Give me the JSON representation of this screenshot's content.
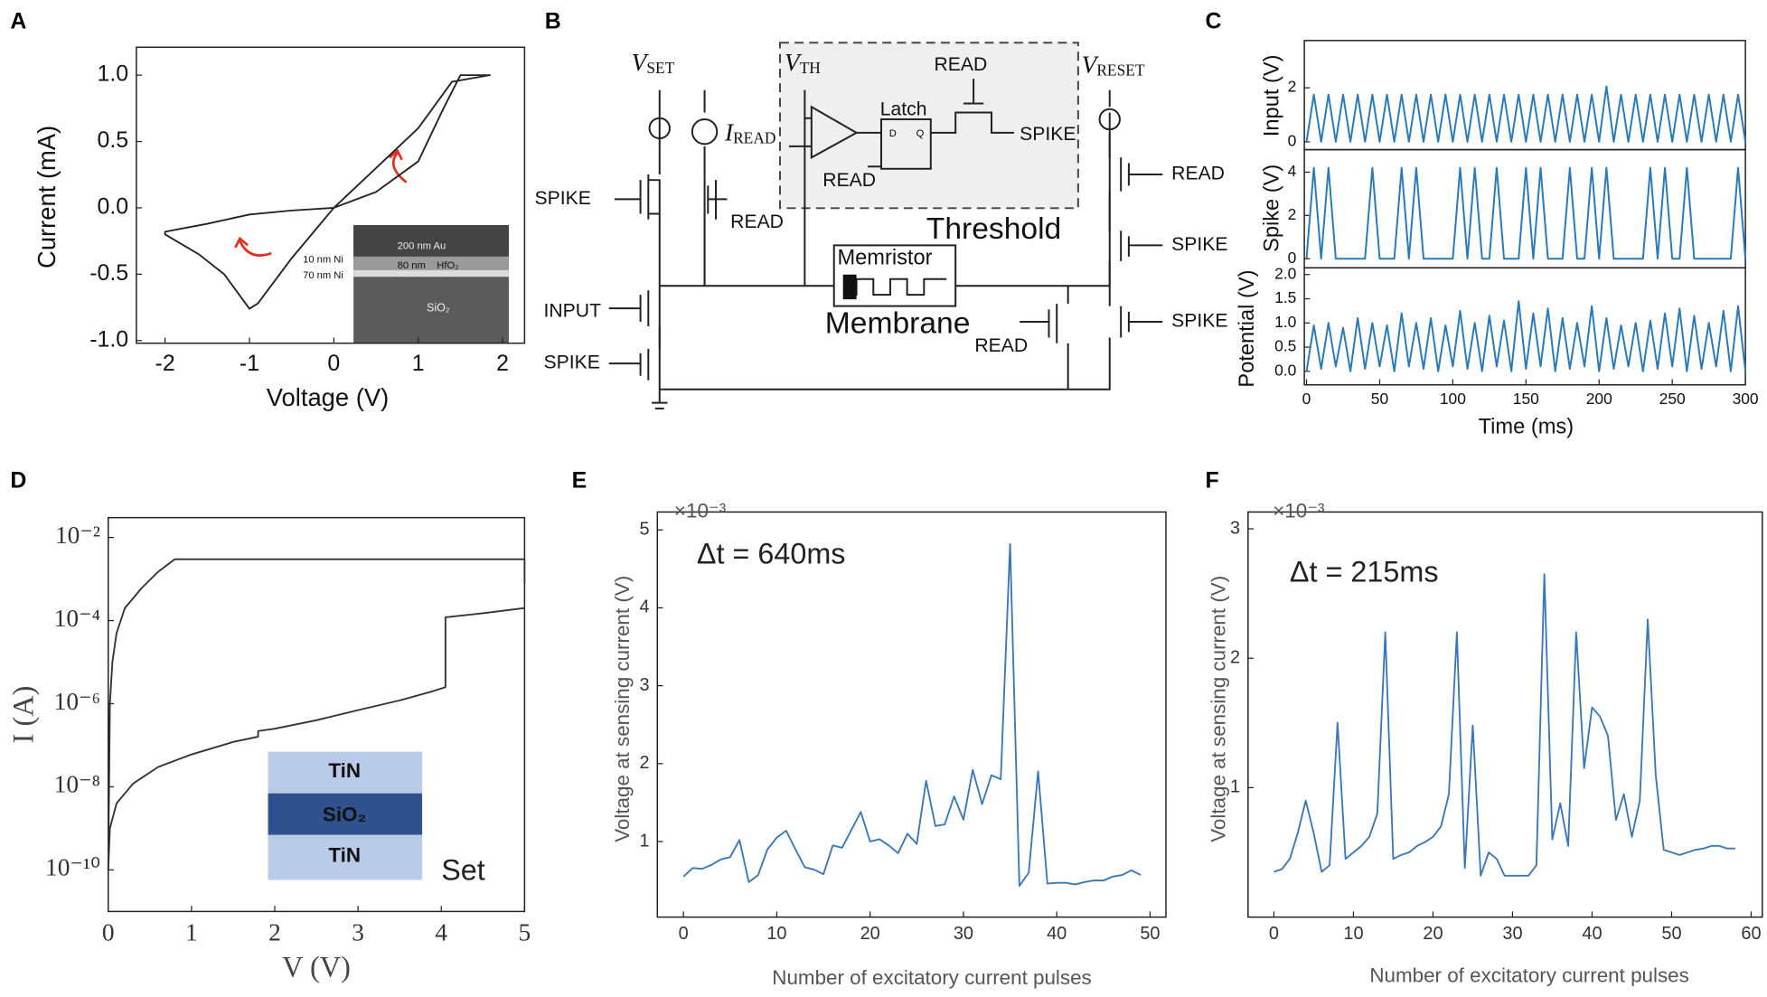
{
  "panel_labels": [
    "A",
    "B",
    "C",
    "D",
    "E",
    "F"
  ],
  "circuit": {
    "sources": [
      {
        "symbol": "V",
        "sub": "SET"
      },
      {
        "symbol": "I",
        "sub": "READ"
      },
      {
        "symbol": "V",
        "sub": "TH"
      },
      {
        "symbol": "V",
        "sub": "RESET"
      }
    ],
    "labels": [
      "SPIKE",
      "READ",
      "INPUT",
      "SPIKE",
      "Latch",
      "D",
      "Q",
      "READ",
      "READ",
      "SPIKE",
      "Threshold",
      "Memristor",
      "Membrane",
      "READ",
      "READ",
      "SPIKE",
      "SPIKE"
    ]
  },
  "chart_data": [
    {
      "type": "line",
      "xlabel": "Voltage (V)",
      "ylabel": "Current (mA)",
      "xlim": [
        -2.34,
        2.26
      ],
      "ylim": [
        -1.02,
        1.21
      ],
      "xticks": [
        -2,
        -1,
        0,
        1,
        2
      ],
      "yticks": [
        {
          "value": 1.0,
          "label": "1.0"
        },
        {
          "value": 0.5,
          "label": "0.5"
        },
        {
          "value": 0,
          "label": "0.0"
        },
        {
          "value": -0.5,
          "label": "-0.5"
        },
        {
          "value": -1.0,
          "label": "-1.0"
        }
      ],
      "series": [
        {
          "color": "#222222",
          "x": [
            0,
            0.5,
            1.0,
            1.3,
            1.5,
            1.85,
            1.4,
            1.0,
            0.5,
            0,
            -0.5,
            -0.9,
            -1.0,
            -1.3,
            -1.6,
            -2.0,
            -2.0,
            -1.5,
            -1.0,
            -0.5,
            0
          ],
          "values": [
            0,
            0.12,
            0.35,
            0.75,
            1.0,
            1.0,
            0.95,
            0.6,
            0.3,
            0,
            -0.38,
            -0.72,
            -0.76,
            -0.5,
            -0.35,
            -0.2,
            -0.18,
            -0.12,
            -0.05,
            -0.02,
            0
          ]
        }
      ],
      "inset_labels": [
        "200 nm Au",
        "80 nm",
        "HfO₂",
        "10 nm Ni",
        "70 nm Ni",
        "SiO₂"
      ]
    },
    {
      "type": "line",
      "ylabel": "Input (V)",
      "xlim": [
        -1.5,
        300
      ],
      "ylim": [
        -0.29,
        3.75
      ],
      "yticks": [
        0,
        2
      ],
      "series": [
        {
          "color": "#2a7ab9",
          "x": [
            0,
            5,
            10,
            15,
            20,
            25,
            30,
            35,
            40,
            45,
            50,
            55,
            60,
            65,
            70,
            75,
            80,
            85,
            90,
            95,
            100,
            105,
            110,
            115,
            120,
            125,
            130,
            135,
            140,
            145,
            150,
            155,
            160,
            165,
            170,
            175,
            180,
            185,
            190,
            195,
            200,
            205,
            210,
            215,
            220,
            225,
            230,
            235,
            240,
            245,
            250,
            255,
            260,
            265,
            270,
            275,
            280,
            285,
            290,
            295,
            300
          ],
          "values": [
            0,
            1.75,
            0,
            1.75,
            0,
            1.75,
            0,
            1.75,
            0,
            1.75,
            0,
            1.75,
            0,
            1.75,
            0,
            1.75,
            0,
            1.75,
            0,
            1.75,
            0,
            1.75,
            0,
            1.75,
            0,
            1.75,
            0,
            1.75,
            0,
            1.75,
            0,
            1.75,
            0,
            1.75,
            0,
            1.75,
            0,
            1.75,
            0,
            1.75,
            0,
            2.05,
            0,
            1.75,
            0,
            1.75,
            0,
            1.75,
            0,
            1.75,
            0,
            1.75,
            0,
            1.75,
            0,
            1.75,
            0,
            1.75,
            0,
            1.75,
            0
          ]
        }
      ]
    },
    {
      "type": "line",
      "ylabel": "Spike (V)",
      "xlim": [
        -1.5,
        300
      ],
      "ylim": [
        -0.42,
        5.04
      ],
      "yticks": [
        0,
        2,
        4
      ],
      "series": [
        {
          "color": "#2a7ab9",
          "x": [
            0,
            5,
            10,
            15,
            20,
            25,
            30,
            35,
            40,
            45,
            50,
            55,
            60,
            65,
            70,
            75,
            80,
            85,
            90,
            95,
            100,
            105,
            110,
            115,
            120,
            125,
            130,
            135,
            140,
            145,
            150,
            155,
            160,
            165,
            170,
            175,
            180,
            185,
            190,
            195,
            200,
            205,
            210,
            215,
            220,
            225,
            230,
            235,
            240,
            245,
            250,
            255,
            260,
            265,
            270,
            275,
            280,
            285,
            290,
            295,
            300
          ],
          "values": [
            0,
            4.2,
            0,
            4.2,
            0,
            0,
            0,
            0,
            0,
            4.2,
            0,
            0,
            0,
            4.2,
            0,
            4.2,
            0,
            0,
            0,
            0,
            0,
            4.2,
            0,
            4.2,
            0,
            0,
            4.2,
            0,
            0,
            0,
            4.2,
            0,
            4.2,
            0,
            0,
            0,
            4.2,
            0,
            0,
            4.2,
            0,
            4.2,
            0,
            0,
            0,
            0,
            0,
            4.2,
            0,
            4.2,
            0,
            0,
            4.2,
            0,
            0,
            0,
            0,
            0,
            0,
            4.2,
            0
          ]
        }
      ]
    },
    {
      "type": "line",
      "ylabel": "Potential (V)",
      "xlabel": "Time (ms)",
      "xlim": [
        -1.5,
        300
      ],
      "ylim": [
        -0.28,
        2.14
      ],
      "xticks": [
        0,
        50,
        100,
        150,
        200,
        250,
        300
      ],
      "yticks": [
        {
          "value": 0,
          "label": "0.0"
        },
        {
          "value": 0.5,
          "label": "0.5"
        },
        {
          "value": 1.0,
          "label": "1.0"
        },
        {
          "value": 1.5,
          "label": "1.5"
        },
        {
          "value": 2.0,
          "label": "2.0"
        }
      ],
      "series": [
        {
          "color": "#2a7ab9",
          "x": [
            0,
            5,
            10,
            15,
            20,
            25,
            30,
            35,
            40,
            45,
            50,
            55,
            60,
            65,
            70,
            75,
            80,
            85,
            90,
            95,
            100,
            105,
            110,
            115,
            120,
            125,
            130,
            135,
            140,
            145,
            150,
            155,
            160,
            165,
            170,
            175,
            180,
            185,
            190,
            195,
            200,
            205,
            210,
            215,
            220,
            225,
            230,
            235,
            240,
            245,
            250,
            255,
            260,
            265,
            270,
            275,
            280,
            285,
            290,
            295,
            300
          ],
          "values": [
            0,
            0.95,
            0.05,
            1.0,
            0.1,
            0.9,
            0,
            1.1,
            0.05,
            1.0,
            0.1,
            0.95,
            0,
            1.2,
            0.1,
            1.0,
            0.05,
            1.1,
            0,
            0.95,
            0.1,
            1.25,
            0.05,
            1.0,
            0,
            1.15,
            0.1,
            1.05,
            0,
            1.45,
            0.05,
            1.2,
            0.1,
            1.3,
            0,
            1.1,
            0.05,
            1.0,
            0.1,
            1.35,
            0,
            1.1,
            0.05,
            0.95,
            0.1,
            1.0,
            0,
            1.05,
            0.05,
            1.2,
            0.1,
            1.3,
            0,
            1.15,
            0.05,
            1.0,
            0.1,
            1.25,
            0,
            1.35,
            0
          ]
        }
      ]
    },
    {
      "type": "line",
      "xlabel": "V (V)",
      "ylabel": "I (A)",
      "ylog": true,
      "xlim": [
        0,
        5
      ],
      "ylim": [
        1e-11,
        0.03
      ],
      "xticks": [
        0,
        1,
        2,
        3,
        4,
        5
      ],
      "yticks": [
        {
          "value": 0.01,
          "label": "10⁻²"
        },
        {
          "value": 0.0001,
          "label": "10⁻⁴"
        },
        {
          "value": 1e-06,
          "label": "10⁻⁶"
        },
        {
          "value": 1e-08,
          "label": "10⁻⁸"
        },
        {
          "value": 1e-10,
          "label": "10⁻¹⁰"
        }
      ],
      "series": [
        {
          "color": "#333333",
          "x": [
            0,
            0.02,
            0.05,
            0.1,
            0.2,
            0.4,
            0.6,
            0.8,
            5,
            5
          ],
          "values": [
            1e-10,
            1e-06,
            1e-05,
            5e-05,
            0.0002,
            0.0006,
            0.0015,
            0.003,
            0.003,
            0.0008
          ]
        },
        {
          "color": "#333333",
          "x": [
            0,
            0.02,
            0.1,
            0.3,
            0.6,
            1,
            1.5,
            1.8,
            1.8,
            2,
            2.5,
            3,
            3.5,
            3.9,
            4.05,
            4.05,
            4.5,
            5
          ],
          "values": [
            1e-10,
            1e-09,
            4e-09,
            1.2e-08,
            3e-08,
            6e-08,
            1.2e-07,
            1.6e-07,
            2.2e-07,
            2.5e-07,
            4e-07,
            7e-07,
            1.2e-06,
            2e-06,
            2.5e-06,
            0.00012,
            0.00015,
            0.0002
          ]
        }
      ],
      "inset_labels": [
        "TiN",
        "SiO₂",
        "TiN"
      ],
      "annotation": "Set"
    },
    {
      "type": "line",
      "xlabel": "Number of excitatory current pulses",
      "ylabel": "Voltage at sensing current (V)",
      "xlim": [
        -2.8,
        51.7
      ],
      "ylim": [
        0.03,
        5.23
      ],
      "xticks": [
        0,
        10,
        20,
        30,
        40,
        50
      ],
      "yticks": [
        1,
        2,
        3,
        4,
        5
      ],
      "y_multiplier": "×10⁻³",
      "annotation": "Δt = 640ms",
      "series": [
        {
          "color": "#3a78b5",
          "x": [
            0,
            1,
            2,
            3,
            4,
            5,
            6,
            7,
            8,
            9,
            10,
            11,
            12,
            13,
            14,
            15,
            16,
            17,
            18,
            19,
            20,
            21,
            22,
            23,
            24,
            25,
            26,
            27,
            28,
            29,
            30,
            31,
            32,
            33,
            34,
            35,
            36,
            37,
            38,
            39,
            40,
            41,
            42,
            43,
            44,
            45,
            46,
            47,
            48,
            49
          ],
          "values": [
            0.55,
            0.66,
            0.65,
            0.7,
            0.77,
            0.8,
            1.02,
            0.48,
            0.57,
            0.9,
            1.05,
            1.14,
            0.9,
            0.67,
            0.64,
            0.58,
            0.95,
            0.92,
            1.15,
            1.38,
            1.0,
            1.03,
            0.95,
            0.85,
            1.1,
            0.97,
            1.78,
            1.2,
            1.22,
            1.58,
            1.28,
            1.92,
            1.48,
            1.85,
            1.8,
            4.82,
            0.43,
            0.6,
            1.9,
            0.46,
            0.47,
            0.47,
            0.45,
            0.48,
            0.5,
            0.5,
            0.55,
            0.57,
            0.63,
            0.57
          ]
        }
      ]
    },
    {
      "type": "line",
      "xlabel": "Number of excitatory current pulses",
      "ylabel": "Voltage at sensing current (V)",
      "xlim": [
        -3.25,
        61.4
      ],
      "ylim": [
        0,
        3.13
      ],
      "xticks": [
        0,
        10,
        20,
        30,
        40,
        50,
        60
      ],
      "yticks": [
        1,
        2,
        3
      ],
      "y_multiplier": "×10⁻³",
      "annotation": "Δt = 215ms",
      "series": [
        {
          "color": "#3a78b5",
          "x": [
            0,
            1,
            2,
            3,
            4,
            5,
            6,
            7,
            8,
            9,
            10,
            11,
            12,
            13,
            14,
            15,
            16,
            17,
            18,
            19,
            20,
            21,
            22,
            23,
            24,
            25,
            26,
            27,
            28,
            29,
            30,
            31,
            32,
            33,
            34,
            35,
            36,
            37,
            38,
            39,
            40,
            41,
            42,
            43,
            44,
            45,
            46,
            47,
            48,
            49,
            50,
            51,
            52,
            53,
            54,
            55,
            56,
            57,
            58
          ],
          "values": [
            0.35,
            0.37,
            0.45,
            0.65,
            0.9,
            0.65,
            0.35,
            0.4,
            1.5,
            0.45,
            0.5,
            0.55,
            0.62,
            0.8,
            2.2,
            0.45,
            0.48,
            0.5,
            0.55,
            0.58,
            0.62,
            0.7,
            0.95,
            2.2,
            0.38,
            1.48,
            0.32,
            0.5,
            0.45,
            0.32,
            0.32,
            0.32,
            0.32,
            0.4,
            2.65,
            0.6,
            0.88,
            0.55,
            2.2,
            1.15,
            1.62,
            1.55,
            1.4,
            0.75,
            0.95,
            0.62,
            0.9,
            2.3,
            1.1,
            0.52,
            0.5,
            0.48,
            0.5,
            0.52,
            0.53,
            0.55,
            0.55,
            0.53,
            0.53
          ]
        }
      ]
    }
  ]
}
